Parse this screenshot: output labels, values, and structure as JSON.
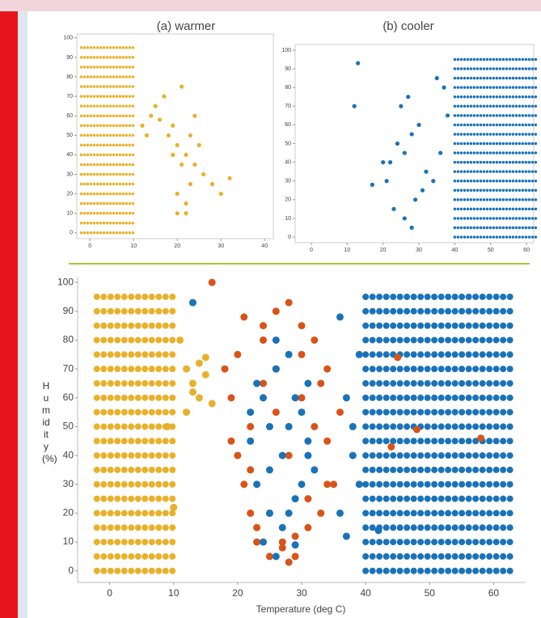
{
  "chart_data": [
    {
      "type": "scatter",
      "title": "(a) warmer",
      "xlim": [
        -3,
        42
      ],
      "ylim": [
        -3,
        102
      ],
      "xticks": [
        0,
        10,
        20,
        30,
        40
      ],
      "yticks": [
        0,
        10,
        20,
        30,
        40,
        50,
        60,
        70,
        80,
        90,
        100
      ],
      "series": [
        {
          "type": "rows",
          "color": "#e8b12c",
          "xrange": [
            -2,
            10
          ],
          "values": [
            0,
            5,
            10,
            15,
            20,
            25,
            30,
            35,
            40,
            45,
            50,
            55,
            60,
            65,
            70,
            75,
            80,
            85,
            90,
            95
          ]
        },
        {
          "type": "points",
          "color": "#e8b12c",
          "x": [
            12,
            14,
            16,
            18,
            20,
            22,
            24,
            26,
            28,
            15,
            17,
            19,
            21,
            23,
            25,
            20,
            22,
            21,
            23,
            19,
            22,
            24,
            13,
            30,
            32,
            20,
            22
          ],
          "values": [
            55,
            60,
            58,
            50,
            45,
            40,
            35,
            30,
            25,
            65,
            70,
            55,
            75,
            50,
            45,
            20,
            10,
            35,
            25,
            40,
            15,
            60,
            50,
            20,
            28,
            10,
            10
          ]
        }
      ]
    },
    {
      "type": "scatter",
      "title": "(b) cooler",
      "xlim": [
        -4.5,
        62
      ],
      "ylim": [
        -3,
        103
      ],
      "xticks": [
        0,
        10,
        20,
        30,
        40,
        50,
        60
      ],
      "yticks": [
        0,
        10,
        20,
        30,
        40,
        50,
        60,
        70,
        80,
        90,
        100
      ],
      "series": [
        {
          "type": "rows",
          "color": "#1a73b8",
          "xrange": [
            40,
            63
          ],
          "values": [
            0,
            5,
            10,
            15,
            20,
            25,
            30,
            35,
            40,
            45,
            50,
            55,
            60,
            65,
            70,
            75,
            80,
            85,
            90,
            95
          ]
        },
        {
          "type": "points",
          "color": "#1a73b8",
          "x": [
            22,
            24,
            26,
            28,
            30,
            32,
            34,
            36,
            38,
            25,
            27,
            29,
            31,
            23,
            21,
            20,
            13,
            12,
            17,
            35,
            37,
            26,
            28
          ],
          "values": [
            40,
            50,
            45,
            55,
            60,
            35,
            30,
            45,
            65,
            70,
            75,
            20,
            25,
            15,
            30,
            40,
            93,
            70,
            28,
            85,
            80,
            10,
            5
          ]
        }
      ]
    },
    {
      "type": "scatter",
      "xlabel": "Temperature (deg C)",
      "ylabel": "Humidity (%)",
      "xlim": [
        -5,
        65
      ],
      "ylim": [
        -4,
        102
      ],
      "xticks": [
        0,
        10,
        20,
        30,
        40,
        50,
        60
      ],
      "yticks": [
        0,
        10,
        20,
        30,
        40,
        50,
        60,
        70,
        80,
        90,
        100
      ],
      "series": [
        {
          "type": "rows",
          "color": "#e8b12c",
          "xrange": [
            -2,
            10
          ],
          "values": [
            0,
            5,
            10,
            15,
            20,
            25,
            30,
            35,
            40,
            45,
            50,
            55,
            60,
            65,
            70,
            75,
            80,
            85,
            90,
            95
          ]
        },
        {
          "type": "rows",
          "color": "#1a73b8",
          "xrange": [
            40,
            63
          ],
          "values": [
            0,
            5,
            10,
            15,
            20,
            25,
            30,
            35,
            40,
            45,
            50,
            55,
            60,
            65,
            70,
            75,
            80,
            85,
            90,
            95
          ]
        },
        {
          "type": "points",
          "color": "#e8b12c",
          "x": [
            12,
            13,
            14,
            15,
            12,
            14,
            16,
            11,
            13,
            15,
            9,
            10
          ],
          "values": [
            70,
            65,
            60,
            68,
            55,
            72,
            58,
            80,
            62,
            74,
            50,
            22
          ]
        },
        {
          "type": "points",
          "color": "#d95319",
          "x": [
            19,
            20,
            21,
            22,
            23,
            24,
            25,
            26,
            27,
            28,
            29,
            30,
            31,
            32,
            33,
            34,
            35,
            36,
            20,
            22,
            24,
            26,
            28,
            30,
            32,
            34,
            21,
            23,
            25,
            27,
            29,
            31,
            33,
            19,
            22,
            26,
            30,
            34,
            24,
            28,
            16,
            18,
            44,
            48,
            45,
            58
          ],
          "values": [
            60,
            75,
            88,
            20,
            10,
            85,
            5,
            90,
            8,
            93,
            12,
            85,
            15,
            80,
            20,
            70,
            30,
            55,
            40,
            50,
            65,
            70,
            40,
            60,
            50,
            30,
            30,
            15,
            20,
            10,
            5,
            25,
            65,
            45,
            35,
            55,
            75,
            45,
            80,
            3,
            100,
            70,
            43,
            49,
            74,
            46
          ]
        },
        {
          "type": "points",
          "color": "#1a73b8",
          "x": [
            22,
            23,
            24,
            25,
            26,
            27,
            28,
            29,
            30,
            31,
            32,
            23,
            25,
            27,
            29,
            31,
            24,
            26,
            28,
            30,
            22,
            25,
            28,
            31,
            36,
            37,
            38,
            39,
            36,
            38,
            37,
            39,
            26,
            29,
            42,
            13
          ],
          "values": [
            45,
            30,
            60,
            20,
            70,
            15,
            75,
            25,
            55,
            40,
            35,
            65,
            50,
            40,
            60,
            45,
            10,
            80,
            20,
            30,
            55,
            35,
            50,
            65,
            88,
            60,
            40,
            75,
            20,
            50,
            12,
            30,
            5,
            9,
            14,
            93
          ]
        }
      ]
    }
  ]
}
